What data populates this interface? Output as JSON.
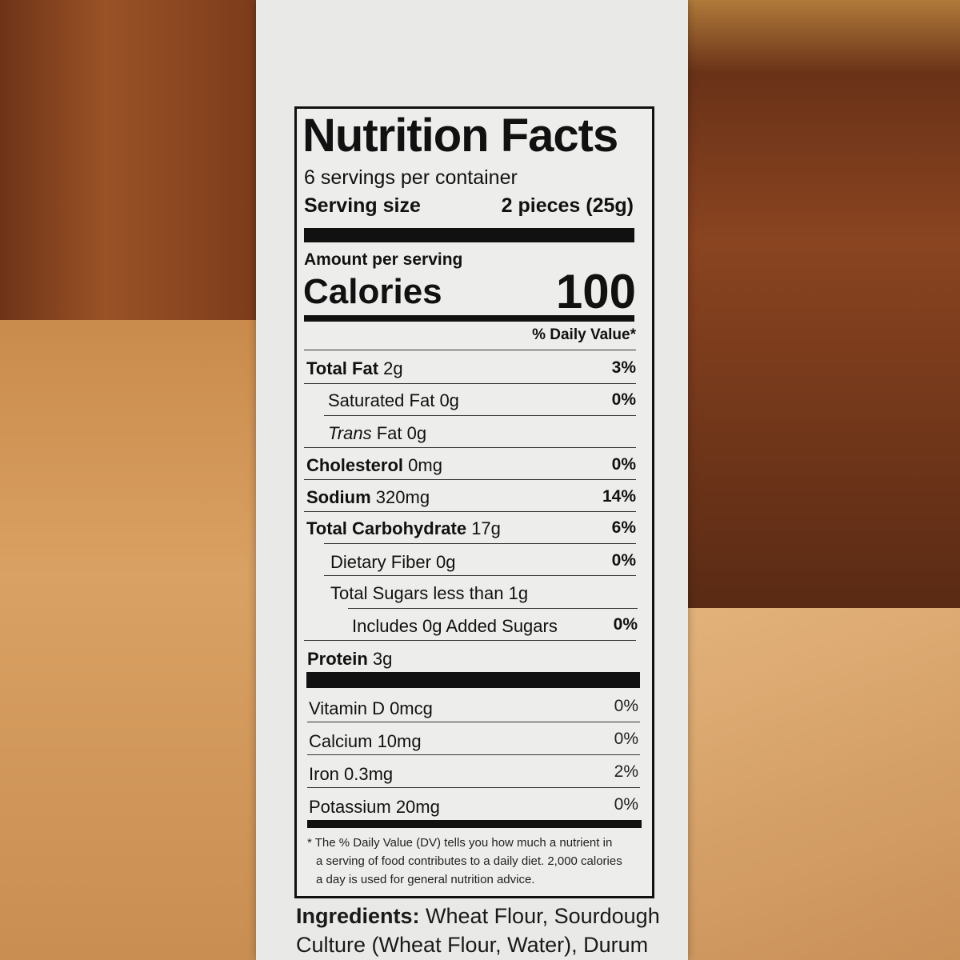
{
  "title": "Nutrition Facts",
  "servings_per_container": "6 servings per container",
  "serving_size_label": "Serving size",
  "serving_size_value": "2 pieces (25g)",
  "amount_per_serving": "Amount per serving",
  "calories_label": "Calories",
  "calories_value": "100",
  "dv_header": "% Daily Value*",
  "nutrients": [
    {
      "name": "Total Fat",
      "amount": "2g",
      "dv": "3%"
    },
    {
      "name": "Saturated Fat",
      "amount": "0g",
      "dv": "0%"
    },
    {
      "name": "Trans",
      "name2": "Fat",
      "amount": "0g",
      "dv": ""
    },
    {
      "name": "Cholesterol",
      "amount": "0mg",
      "dv": "0%"
    },
    {
      "name": "Sodium",
      "amount": "320mg",
      "dv": "14%"
    },
    {
      "name": "Total Carbohydrate",
      "amount": "17g",
      "dv": "6%"
    },
    {
      "name": "Dietary Fiber",
      "amount": "0g",
      "dv": "0%"
    },
    {
      "name": "Total Sugars",
      "amount": "less than 1g",
      "dv": ""
    },
    {
      "name": "Includes 0g Added Sugars",
      "amount": "",
      "dv": "0%"
    },
    {
      "name": "Protein",
      "amount": "3g",
      "dv": ""
    }
  ],
  "vitamins": [
    {
      "name": "Vitamin D 0mcg",
      "dv": "0%"
    },
    {
      "name": "Calcium 10mg",
      "dv": "0%"
    },
    {
      "name": "Iron 0.3mg",
      "dv": "2%"
    },
    {
      "name": "Potassium 20mg",
      "dv": "0%"
    }
  ],
  "footnote": [
    "* The % Daily Value (DV) tells you how much a nutrient in",
    "a serving of food contributes to a daily diet. 2,000 calories",
    "a day is used for general nutrition advice."
  ],
  "ingredients_label": "Ingredients:",
  "ingredients_line1": "Wheat Flour, Sourdough",
  "ingredients_line2": "Culture (Wheat Flour, Water), Durum"
}
